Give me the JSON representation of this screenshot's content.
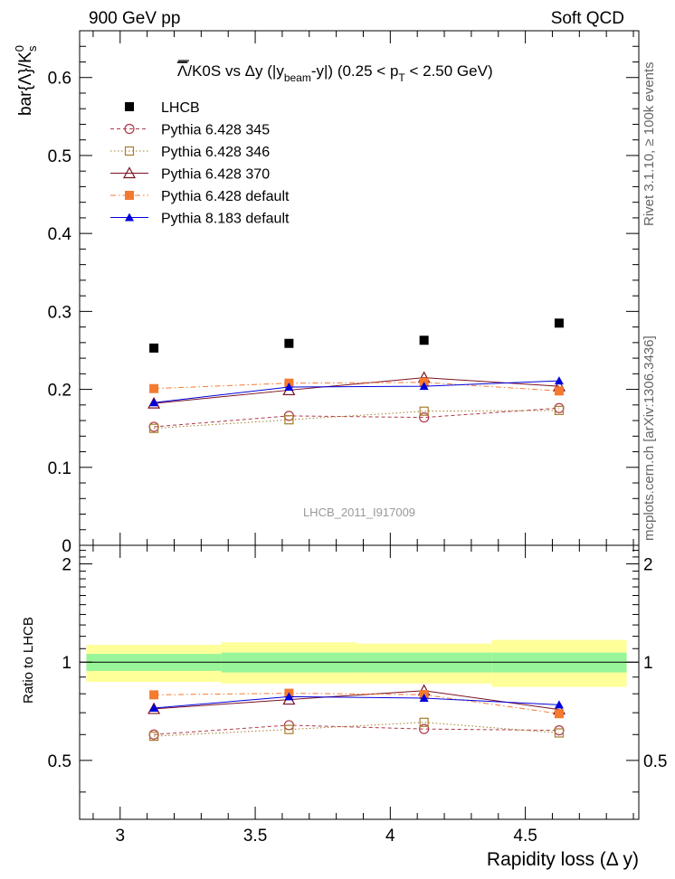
{
  "header": {
    "left": "900 GeV pp",
    "right": "Soft QCD"
  },
  "side_labels": {
    "rivet": "Rivet 3.1.10, ≥ 100k events",
    "mcplots": "mcplots.cern.ch [arXiv:1306.3436]"
  },
  "chart_data": [
    {
      "type": "scatter",
      "panel": "main",
      "title_prefix": "Λ",
      "title_main": "/K0S vs  Δy (|y",
      "title_sub1": "beam",
      "title_mid": "-y|) (0.25 < p",
      "title_sub2": "T",
      "title_end": " < 2.50 GeV)",
      "ylabel_main": "bar{Λ}/K",
      "ylabel_sup": "0",
      "ylabel_sub": "s",
      "watermark": "LHCB_2011_I917009",
      "ylim": [
        0,
        0.66
      ],
      "xlim": [
        2.85,
        4.92
      ],
      "yticks": [
        0,
        0.1,
        0.2,
        0.3,
        0.4,
        0.5,
        0.6
      ],
      "ytick_labels": [
        "0",
        "0.1",
        "0.2",
        "0.3",
        "0.4",
        "0.5",
        "0.6"
      ],
      "x": [
        3.125,
        3.625,
        4.125,
        4.625
      ],
      "legend_position": "top-left",
      "series": [
        {
          "name": "LHCB",
          "marker": "square-filled",
          "color": "#000000",
          "line": "none",
          "values": [
            0.253,
            0.259,
            0.263,
            0.285
          ]
        },
        {
          "name": "Pythia 6.428 345",
          "marker": "circle-open",
          "color": "#b03a4a",
          "line": "dashed",
          "values": [
            0.152,
            0.166,
            0.164,
            0.176
          ]
        },
        {
          "name": "Pythia 6.428 346",
          "marker": "square-open",
          "color": "#a67c2a",
          "line": "dotted",
          "values": [
            0.15,
            0.161,
            0.172,
            0.173
          ]
        },
        {
          "name": "Pythia 6.428 370",
          "marker": "triangle-open",
          "color": "#7a1020",
          "line": "solid",
          "values": [
            0.182,
            0.199,
            0.215,
            0.204
          ]
        },
        {
          "name": "Pythia 6.428 default",
          "marker": "square-filled",
          "color": "#f47a30",
          "line": "dashdot",
          "values": [
            0.201,
            0.208,
            0.209,
            0.198
          ]
        },
        {
          "name": "Pythia 8.183 default",
          "marker": "triangle-filled",
          "color": "#0000dd",
          "line": "solid",
          "values": [
            0.183,
            0.203,
            0.204,
            0.211
          ]
        }
      ]
    },
    {
      "type": "scatter",
      "panel": "ratio",
      "ylabel": "Ratio to LHCB",
      "xlabel": "Rapidity loss (Δ y)",
      "ylim": [
        0.33,
        2.28
      ],
      "yticks": [
        0.5,
        1,
        2
      ],
      "ytick_labels": [
        "0.5",
        "1",
        "2"
      ],
      "xticks": [
        3,
        3.5,
        4,
        4.5
      ],
      "xtick_labels": [
        "3",
        "3.5",
        "4",
        "4.5"
      ],
      "bin_edges": [
        2.875,
        3.375,
        3.875,
        4.375,
        4.875
      ],
      "band_stat_low": [
        0.94,
        0.93,
        0.93,
        0.93
      ],
      "band_stat_high": [
        1.06,
        1.07,
        1.07,
        1.07
      ],
      "band_total_low": [
        0.87,
        0.86,
        0.86,
        0.84
      ],
      "band_total_high": [
        1.13,
        1.15,
        1.14,
        1.17
      ],
      "x": [
        3.125,
        3.625,
        4.125,
        4.625
      ],
      "series": [
        {
          "name": "Pythia 6.428 345",
          "values": [
            0.6,
            0.641,
            0.624,
            0.618
          ]
        },
        {
          "name": "Pythia 6.428 346",
          "values": [
            0.593,
            0.622,
            0.654,
            0.607
          ]
        },
        {
          "name": "Pythia 6.428 370",
          "values": [
            0.719,
            0.768,
            0.818,
            0.716
          ]
        },
        {
          "name": "Pythia 6.428 default",
          "values": [
            0.794,
            0.803,
            0.795,
            0.695
          ]
        },
        {
          "name": "Pythia 8.183 default",
          "values": [
            0.723,
            0.784,
            0.776,
            0.74
          ]
        }
      ]
    }
  ]
}
